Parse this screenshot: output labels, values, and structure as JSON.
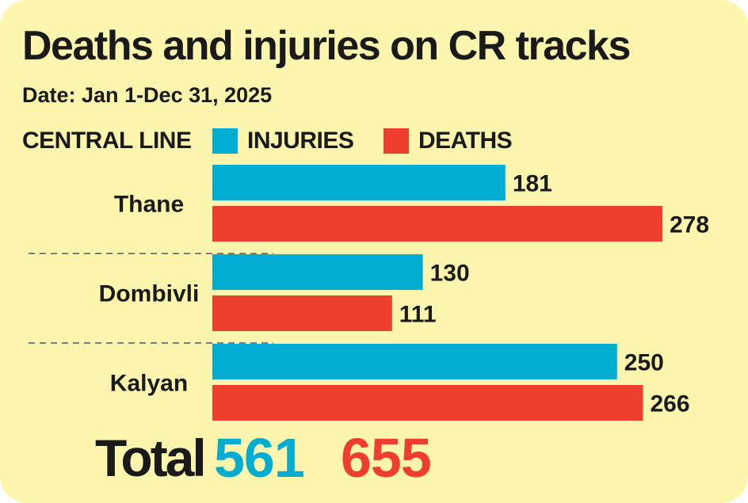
{
  "header": {
    "title": "Deaths and injuries on CR tracks",
    "subtitle": "Date: Jan 1-Dec 31, 2025"
  },
  "legend": {
    "line_label": "CENTRAL LINE",
    "injuries_label": "INJURIES",
    "deaths_label": "DEATHS"
  },
  "colors": {
    "injuries": "#00acd0",
    "deaths": "#ee3e2e",
    "background": "#fbf5ae",
    "text": "#1a1a1a"
  },
  "totals": {
    "label": "Total",
    "injuries": "561",
    "deaths": "655"
  },
  "chart_data": {
    "type": "bar",
    "orientation": "horizontal",
    "categories": [
      "Thane",
      "Dombivli",
      "Kalyan"
    ],
    "series": [
      {
        "name": "INJURIES",
        "values": [
          181,
          130,
          250
        ]
      },
      {
        "name": "DEATHS",
        "values": [
          278,
          111,
          266
        ]
      }
    ],
    "title": "Deaths and injuries on CR tracks",
    "subtitle": "Date: Jan 1-Dec 31, 2025",
    "xlim": [
      0,
      278
    ],
    "grid": false,
    "legend": "top"
  }
}
